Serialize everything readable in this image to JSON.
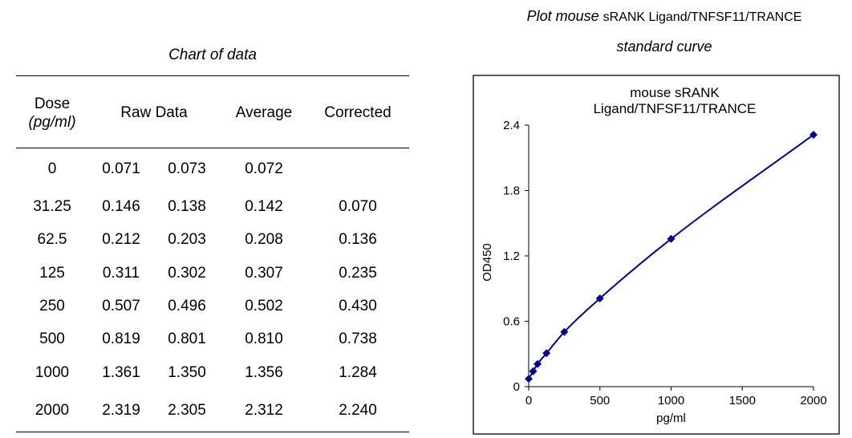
{
  "table": {
    "title": "Chart of data",
    "headers": {
      "dose_line1": "Dose",
      "dose_line2": "(pg/ml)",
      "raw": "Raw Data",
      "average": "Average",
      "corrected": "Corrected"
    },
    "rows": [
      {
        "dose": "0",
        "raw1": "0.071",
        "raw2": "0.073",
        "average": "0.072",
        "corrected": ""
      },
      {
        "dose": "31.25",
        "raw1": "0.146",
        "raw2": "0.138",
        "average": "0.142",
        "corrected": "0.070"
      },
      {
        "dose": "62.5",
        "raw1": "0.212",
        "raw2": "0.203",
        "average": "0.208",
        "corrected": "0.136"
      },
      {
        "dose": "125",
        "raw1": "0.311",
        "raw2": "0.302",
        "average": "0.307",
        "corrected": "0.235"
      },
      {
        "dose": "250",
        "raw1": "0.507",
        "raw2": "0.496",
        "average": "0.502",
        "corrected": "0.430"
      },
      {
        "dose": "500",
        "raw1": "0.819",
        "raw2": "0.801",
        "average": "0.810",
        "corrected": "0.738"
      },
      {
        "dose": "1000",
        "raw1": "1.361",
        "raw2": "1.350",
        "average": "1.356",
        "corrected": "1.284"
      },
      {
        "dose": "2000",
        "raw1": "2.319",
        "raw2": "2.305",
        "average": "2.312",
        "corrected": "2.240"
      }
    ]
  },
  "plot_heading": {
    "line1_italic": "Plot mouse",
    "line1_upright": "sRANK Ligand/TNFSF11/TRANCE",
    "line2": "standard curve"
  },
  "colors": {
    "series": "#00008B"
  },
  "chart_data": {
    "type": "scatter",
    "title": "mouse sRANK Ligand/TNFSF11/TRANCE",
    "title_lines": [
      "mouse sRANK",
      "Ligand/TNFSF11/TRANCE"
    ],
    "xlabel": "pg/ml",
    "ylabel": "OD450",
    "xlim": [
      0,
      2000
    ],
    "ylim": [
      0,
      2.4
    ],
    "xticks": [
      0,
      500,
      1000,
      1500,
      2000
    ],
    "yticks": [
      0,
      0.6,
      1.2,
      1.8,
      2.4
    ],
    "ytick_labels": [
      "0",
      "0.6",
      "1.2",
      "1.8",
      "2.4"
    ],
    "grid": false,
    "series": [
      {
        "name": "mouse sRANK Ligand/TNFSF11/TRANCE",
        "x": [
          0,
          31.25,
          62.5,
          125,
          250,
          500,
          1000,
          2000
        ],
        "y": [
          0.072,
          0.142,
          0.208,
          0.307,
          0.502,
          0.81,
          1.356,
          2.312
        ]
      }
    ]
  }
}
